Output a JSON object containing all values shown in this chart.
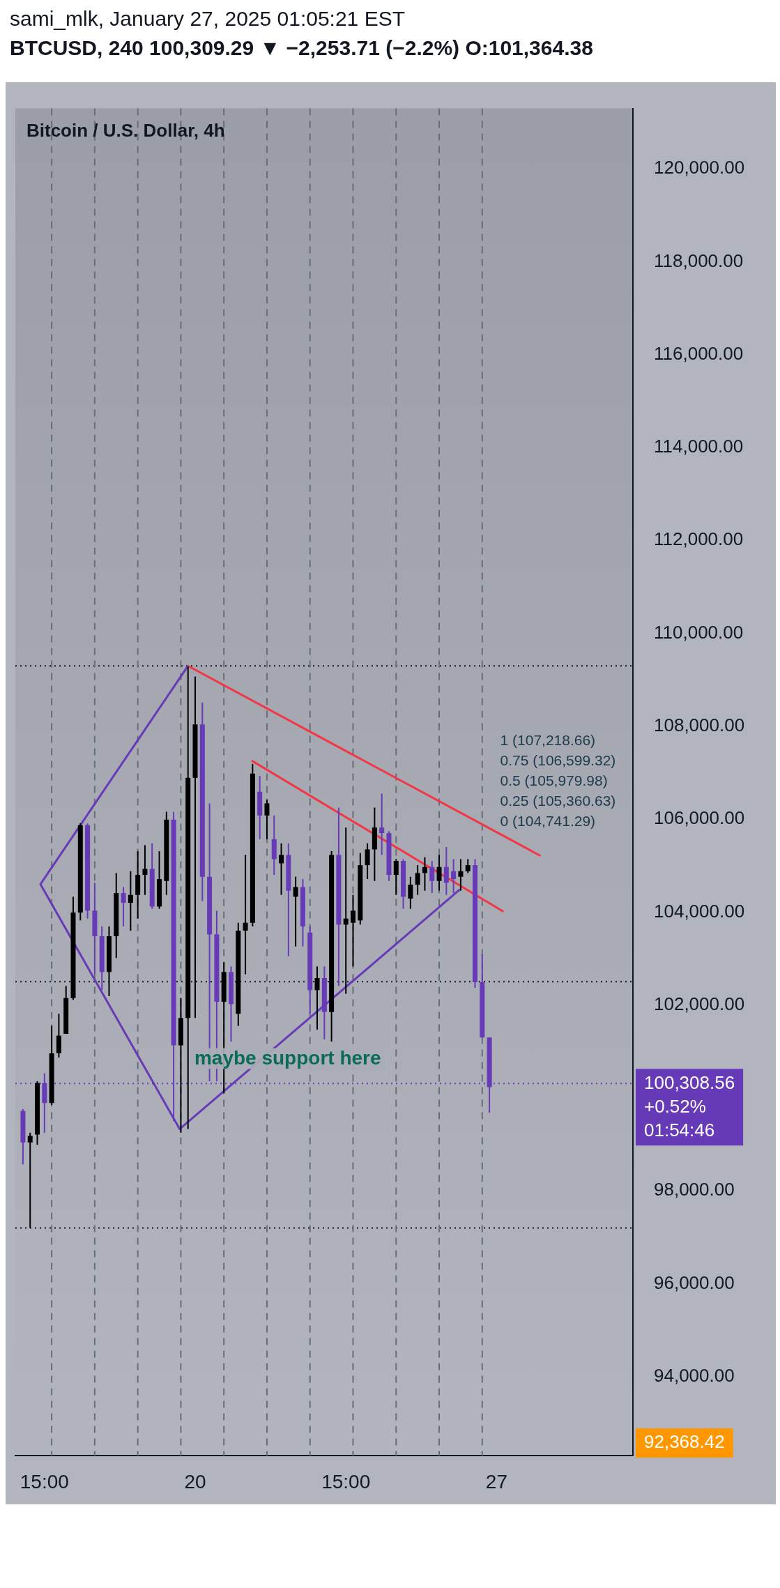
{
  "chart_data": {
    "type": "candlestick",
    "title": "Bitcoin / U.S. Dollar, 4h",
    "subtitle": "BTCUSD, 240  100,309.29 ▼ −2,253.71 (−2.2%) O:101,364.38",
    "x": [
      "2025-01-16T03:00",
      "2025-01-16T07:00",
      "2025-01-16T11:00",
      "2025-01-16T15:00",
      "2025-01-16T19:00",
      "2025-01-16T23:00",
      "2025-01-17T03:00",
      "2025-01-17T07:00",
      "2025-01-17T11:00",
      "2025-01-17T15:00",
      "2025-01-17T19:00",
      "2025-01-17T23:00",
      "2025-01-18T03:00",
      "2025-01-18T07:00",
      "2025-01-18T11:00",
      "2025-01-18T15:00",
      "2025-01-18T19:00",
      "2025-01-18T23:00",
      "2025-01-19T03:00",
      "2025-01-19T07:00",
      "2025-01-19T11:00",
      "2025-01-19T15:00",
      "2025-01-19T19:00",
      "2025-01-19T23:00",
      "2025-01-20T03:00",
      "2025-01-20T07:00",
      "2025-01-20T11:00",
      "2025-01-20T15:00",
      "2025-01-20T19:00",
      "2025-01-20T23:00",
      "2025-01-21T03:00",
      "2025-01-21T07:00",
      "2025-01-21T11:00",
      "2025-01-21T15:00",
      "2025-01-21T19:00",
      "2025-01-21T23:00",
      "2025-01-22T03:00",
      "2025-01-22T07:00",
      "2025-01-22T11:00",
      "2025-01-22T15:00",
      "2025-01-22T19:00",
      "2025-01-22T23:00",
      "2025-01-23T03:00",
      "2025-01-23T07:00",
      "2025-01-23T11:00",
      "2025-01-23T15:00",
      "2025-01-23T19:00",
      "2025-01-23T23:00",
      "2025-01-24T03:00",
      "2025-01-24T07:00",
      "2025-01-24T11:00",
      "2025-01-24T15:00",
      "2025-01-24T19:00",
      "2025-01-24T23:00",
      "2025-01-25T03:00",
      "2025-01-25T07:00",
      "2025-01-25T11:00",
      "2025-01-25T15:00",
      "2025-01-25T19:00",
      "2025-01-25T23:00",
      "2025-01-26T03:00",
      "2025-01-26T07:00",
      "2025-01-26T11:00",
      "2025-01-26T15:00",
      "2025-01-26T19:00",
      "2025-01-26T23:00"
    ],
    "ohlc": [
      [
        99720,
        99760,
        98570,
        99040
      ],
      [
        99040,
        99250,
        97200,
        99180
      ],
      [
        99210,
        100360,
        98990,
        100320
      ],
      [
        100320,
        100530,
        99250,
        99890
      ],
      [
        99890,
        101550,
        99850,
        100960
      ],
      [
        100960,
        101810,
        100870,
        101340
      ],
      [
        101380,
        102410,
        101380,
        102150
      ],
      [
        102150,
        104330,
        102110,
        103990
      ],
      [
        103990,
        105910,
        103820,
        105870
      ],
      [
        105870,
        105910,
        103860,
        104030
      ],
      [
        104030,
        104630,
        102660,
        103480
      ],
      [
        103480,
        103690,
        102320,
        102710
      ],
      [
        102710,
        103690,
        102190,
        103480
      ],
      [
        103480,
        104840,
        103010,
        104410
      ],
      [
        104410,
        104540,
        103690,
        104200
      ],
      [
        104200,
        104880,
        103600,
        104370
      ],
      [
        104370,
        105310,
        103860,
        104800
      ],
      [
        104800,
        105440,
        104370,
        104930
      ],
      [
        104930,
        105480,
        104070,
        104120
      ],
      [
        104120,
        105310,
        104070,
        104710
      ],
      [
        104670,
        106160,
        104370,
        105990
      ],
      [
        105990,
        106160,
        99500,
        101130
      ],
      [
        101130,
        102150,
        99250,
        101720
      ],
      [
        101720,
        109280,
        99330,
        106890
      ],
      [
        106890,
        109070,
        101720,
        108040
      ],
      [
        108040,
        108510,
        104240,
        104760
      ],
      [
        104760,
        106340,
        100360,
        103520
      ],
      [
        103520,
        104030,
        100360,
        102070
      ],
      [
        102070,
        102920,
        100100,
        102710
      ],
      [
        102710,
        102830,
        101210,
        102020
      ],
      [
        101810,
        103770,
        101550,
        103600
      ],
      [
        103600,
        105230,
        102660,
        103770
      ],
      [
        103770,
        107190,
        103690,
        106980
      ],
      [
        106590,
        106930,
        105570,
        106080
      ],
      [
        106080,
        106420,
        105570,
        106340
      ],
      [
        105570,
        106080,
        104800,
        105140
      ],
      [
        105050,
        105480,
        104370,
        105230
      ],
      [
        105230,
        105480,
        103050,
        104460
      ],
      [
        104330,
        104760,
        103260,
        104540
      ],
      [
        104540,
        104710,
        103260,
        103690
      ],
      [
        103560,
        103690,
        101810,
        102320
      ],
      [
        102320,
        102830,
        101470,
        102580
      ],
      [
        102580,
        102830,
        101260,
        101850
      ],
      [
        101850,
        105310,
        101210,
        105230
      ],
      [
        105230,
        106250,
        102410,
        103730
      ],
      [
        103730,
        105820,
        102240,
        103860
      ],
      [
        103770,
        104370,
        102830,
        104030
      ],
      [
        103820,
        105270,
        103730,
        105010
      ],
      [
        105010,
        105480,
        104710,
        105350
      ],
      [
        105350,
        106250,
        104670,
        105820
      ],
      [
        105820,
        106550,
        105230,
        105700
      ],
      [
        105700,
        105740,
        104670,
        104800
      ],
      [
        104800,
        105140,
        104370,
        105100
      ],
      [
        105100,
        105140,
        104070,
        104330
      ],
      [
        104290,
        104760,
        104070,
        104590
      ],
      [
        104590,
        105010,
        104370,
        104840
      ],
      [
        104840,
        105180,
        104460,
        104970
      ],
      [
        104970,
        105100,
        104410,
        104670
      ],
      [
        104670,
        105230,
        104460,
        104970
      ],
      [
        104970,
        105400,
        104370,
        104630
      ],
      [
        104880,
        105140,
        104410,
        104710
      ],
      [
        104760,
        105140,
        104460,
        104880
      ],
      [
        104880,
        105140,
        104840,
        105010
      ],
      [
        105010,
        105140,
        102370,
        102490
      ],
      [
        102490,
        103090,
        101300,
        101300
      ],
      [
        101300,
        101300,
        99680,
        100230
      ]
    ],
    "colors": [
      "#673ab7",
      "#000000",
      "#000000",
      "#673ab7",
      "#000000",
      "#000000",
      "#000000",
      "#000000",
      "#000000",
      "#673ab7",
      "#673ab7",
      "#673ab7",
      "#000000",
      "#000000",
      "#673ab7",
      "#000000",
      "#000000",
      "#000000",
      "#673ab7",
      "#000000",
      "#000000",
      "#673ab7",
      "#000000",
      "#000000",
      "#000000",
      "#673ab7",
      "#673ab7",
      "#673ab7",
      "#000000",
      "#673ab7",
      "#000000",
      "#000000",
      "#000000",
      "#673ab7",
      "#000000",
      "#673ab7",
      "#000000",
      "#673ab7",
      "#000000",
      "#673ab7",
      "#673ab7",
      "#000000",
      "#673ab7",
      "#000000",
      "#673ab7",
      "#000000",
      "#000000",
      "#000000",
      "#000000",
      "#000000",
      "#673ab7",
      "#673ab7",
      "#000000",
      "#673ab7",
      "#000000",
      "#000000",
      "#000000",
      "#673ab7",
      "#000000",
      "#673ab7",
      "#673ab7",
      "#000000",
      "#000000",
      "#673ab7",
      "#673ab7",
      "#673ab7"
    ],
    "series": [
      {
        "type": "line",
        "color": "#673ab7",
        "x": [
          "2025-01-19T23:00",
          "2025-01-16T12:45",
          "2025-01-19T18:20",
          "2025-01-26T06:40"
        ],
        "values": [
          109300,
          104600,
          99330,
          104490
        ]
      },
      {
        "type": "line",
        "color": "#f23645",
        "x": [
          "2025-01-19T23:00",
          "2025-01-28T03:30"
        ],
        "values": [
          109300,
          105210
        ]
      },
      {
        "type": "line",
        "color": "#f23645",
        "x": [
          "2025-01-21T10:30",
          "2025-01-27T06:50"
        ],
        "values": [
          107260,
          104010
        ]
      }
    ],
    "xlim": [
      "2025-01-15T22:45",
      "2025-01-30T07:00"
    ],
    "xticks": [
      {
        "value": "2025-01-16T15:00",
        "label": "15:00"
      },
      {
        "value": "2025-01-20T03:00",
        "label": "20"
      },
      {
        "value": "2025-01-23T15:00",
        "label": "15:00"
      },
      {
        "value": "2025-01-27T03:00",
        "label": "27"
      }
    ],
    "ylim": [
      92300,
      121300
    ],
    "yticks": [
      {
        "value": 94000,
        "label": "94,000.00"
      },
      {
        "value": 96000,
        "label": "96,000.00"
      },
      {
        "value": 98000,
        "label": "98,000.00"
      },
      {
        "value": 102000,
        "label": "102,000.00"
      },
      {
        "value": 104000,
        "label": "104,000.00"
      },
      {
        "value": 106000,
        "label": "106,000.00"
      },
      {
        "value": 108000,
        "label": "108,000.00"
      },
      {
        "value": 110000,
        "label": "110,000.00"
      },
      {
        "value": 112000,
        "label": "112,000.00"
      },
      {
        "value": 114000,
        "label": "114,000.00"
      },
      {
        "value": 116000,
        "label": "116,000.00"
      },
      {
        "value": 118000,
        "label": "118,000.00"
      },
      {
        "value": 120000,
        "label": "120,000.00"
      }
    ],
    "ref_lines": [
      {
        "axis": "y",
        "value": 109300,
        "color": "#131722",
        "line_style": "dotted"
      },
      {
        "axis": "y",
        "value": 102500,
        "color": "#131722",
        "line_style": "dotted"
      },
      {
        "axis": "y",
        "value": 97200,
        "color": "#131722",
        "line_style": "dotted"
      },
      {
        "axis": "y",
        "value": 100308.56,
        "label": "100,308.56\n+0.52%\n01:54:46",
        "color": "#673ab7",
        "line_style": "dotted"
      },
      {
        "axis": "x",
        "value": "2025-01-16T19:00",
        "color": "#6a6d78",
        "line_style": "dashed"
      },
      {
        "axis": "x",
        "value": "2025-01-17T19:00",
        "color": "#6a6d78",
        "line_style": "dashed"
      },
      {
        "axis": "x",
        "value": "2025-01-18T19:00",
        "color": "#6a6d78",
        "line_style": "dashed"
      },
      {
        "axis": "x",
        "value": "2025-01-19T19:00",
        "color": "#6a6d78",
        "line_style": "dashed"
      },
      {
        "axis": "x",
        "value": "2025-01-20T19:00",
        "color": "#6a6d78",
        "line_style": "dashed"
      },
      {
        "axis": "x",
        "value": "2025-01-21T19:00",
        "color": "#6a6d78",
        "line_style": "dashed"
      },
      {
        "axis": "x",
        "value": "2025-01-22T19:00",
        "color": "#6a6d78",
        "line_style": "dashed"
      },
      {
        "axis": "x",
        "value": "2025-01-23T19:00",
        "color": "#6a6d78",
        "line_style": "dashed"
      },
      {
        "axis": "x",
        "value": "2025-01-24T19:00",
        "color": "#6a6d78",
        "line_style": "dashed"
      },
      {
        "axis": "x",
        "value": "2025-01-25T19:00",
        "color": "#6a6d78",
        "line_style": "dashed"
      },
      {
        "axis": "x",
        "value": "2025-01-26T19:00",
        "color": "#6a6d78",
        "line_style": "dashed"
      }
    ],
    "annotations": [
      "sami_mlk, January 27, 2025 01:05:21 EST",
      "1 (107,218.66)",
      "0.75 (106,599.32)",
      "0.5 (105,979.98)",
      "0.25 (105,360.63)",
      "0 (104,741.29)",
      "maybe support here",
      "92,368.42"
    ]
  }
}
